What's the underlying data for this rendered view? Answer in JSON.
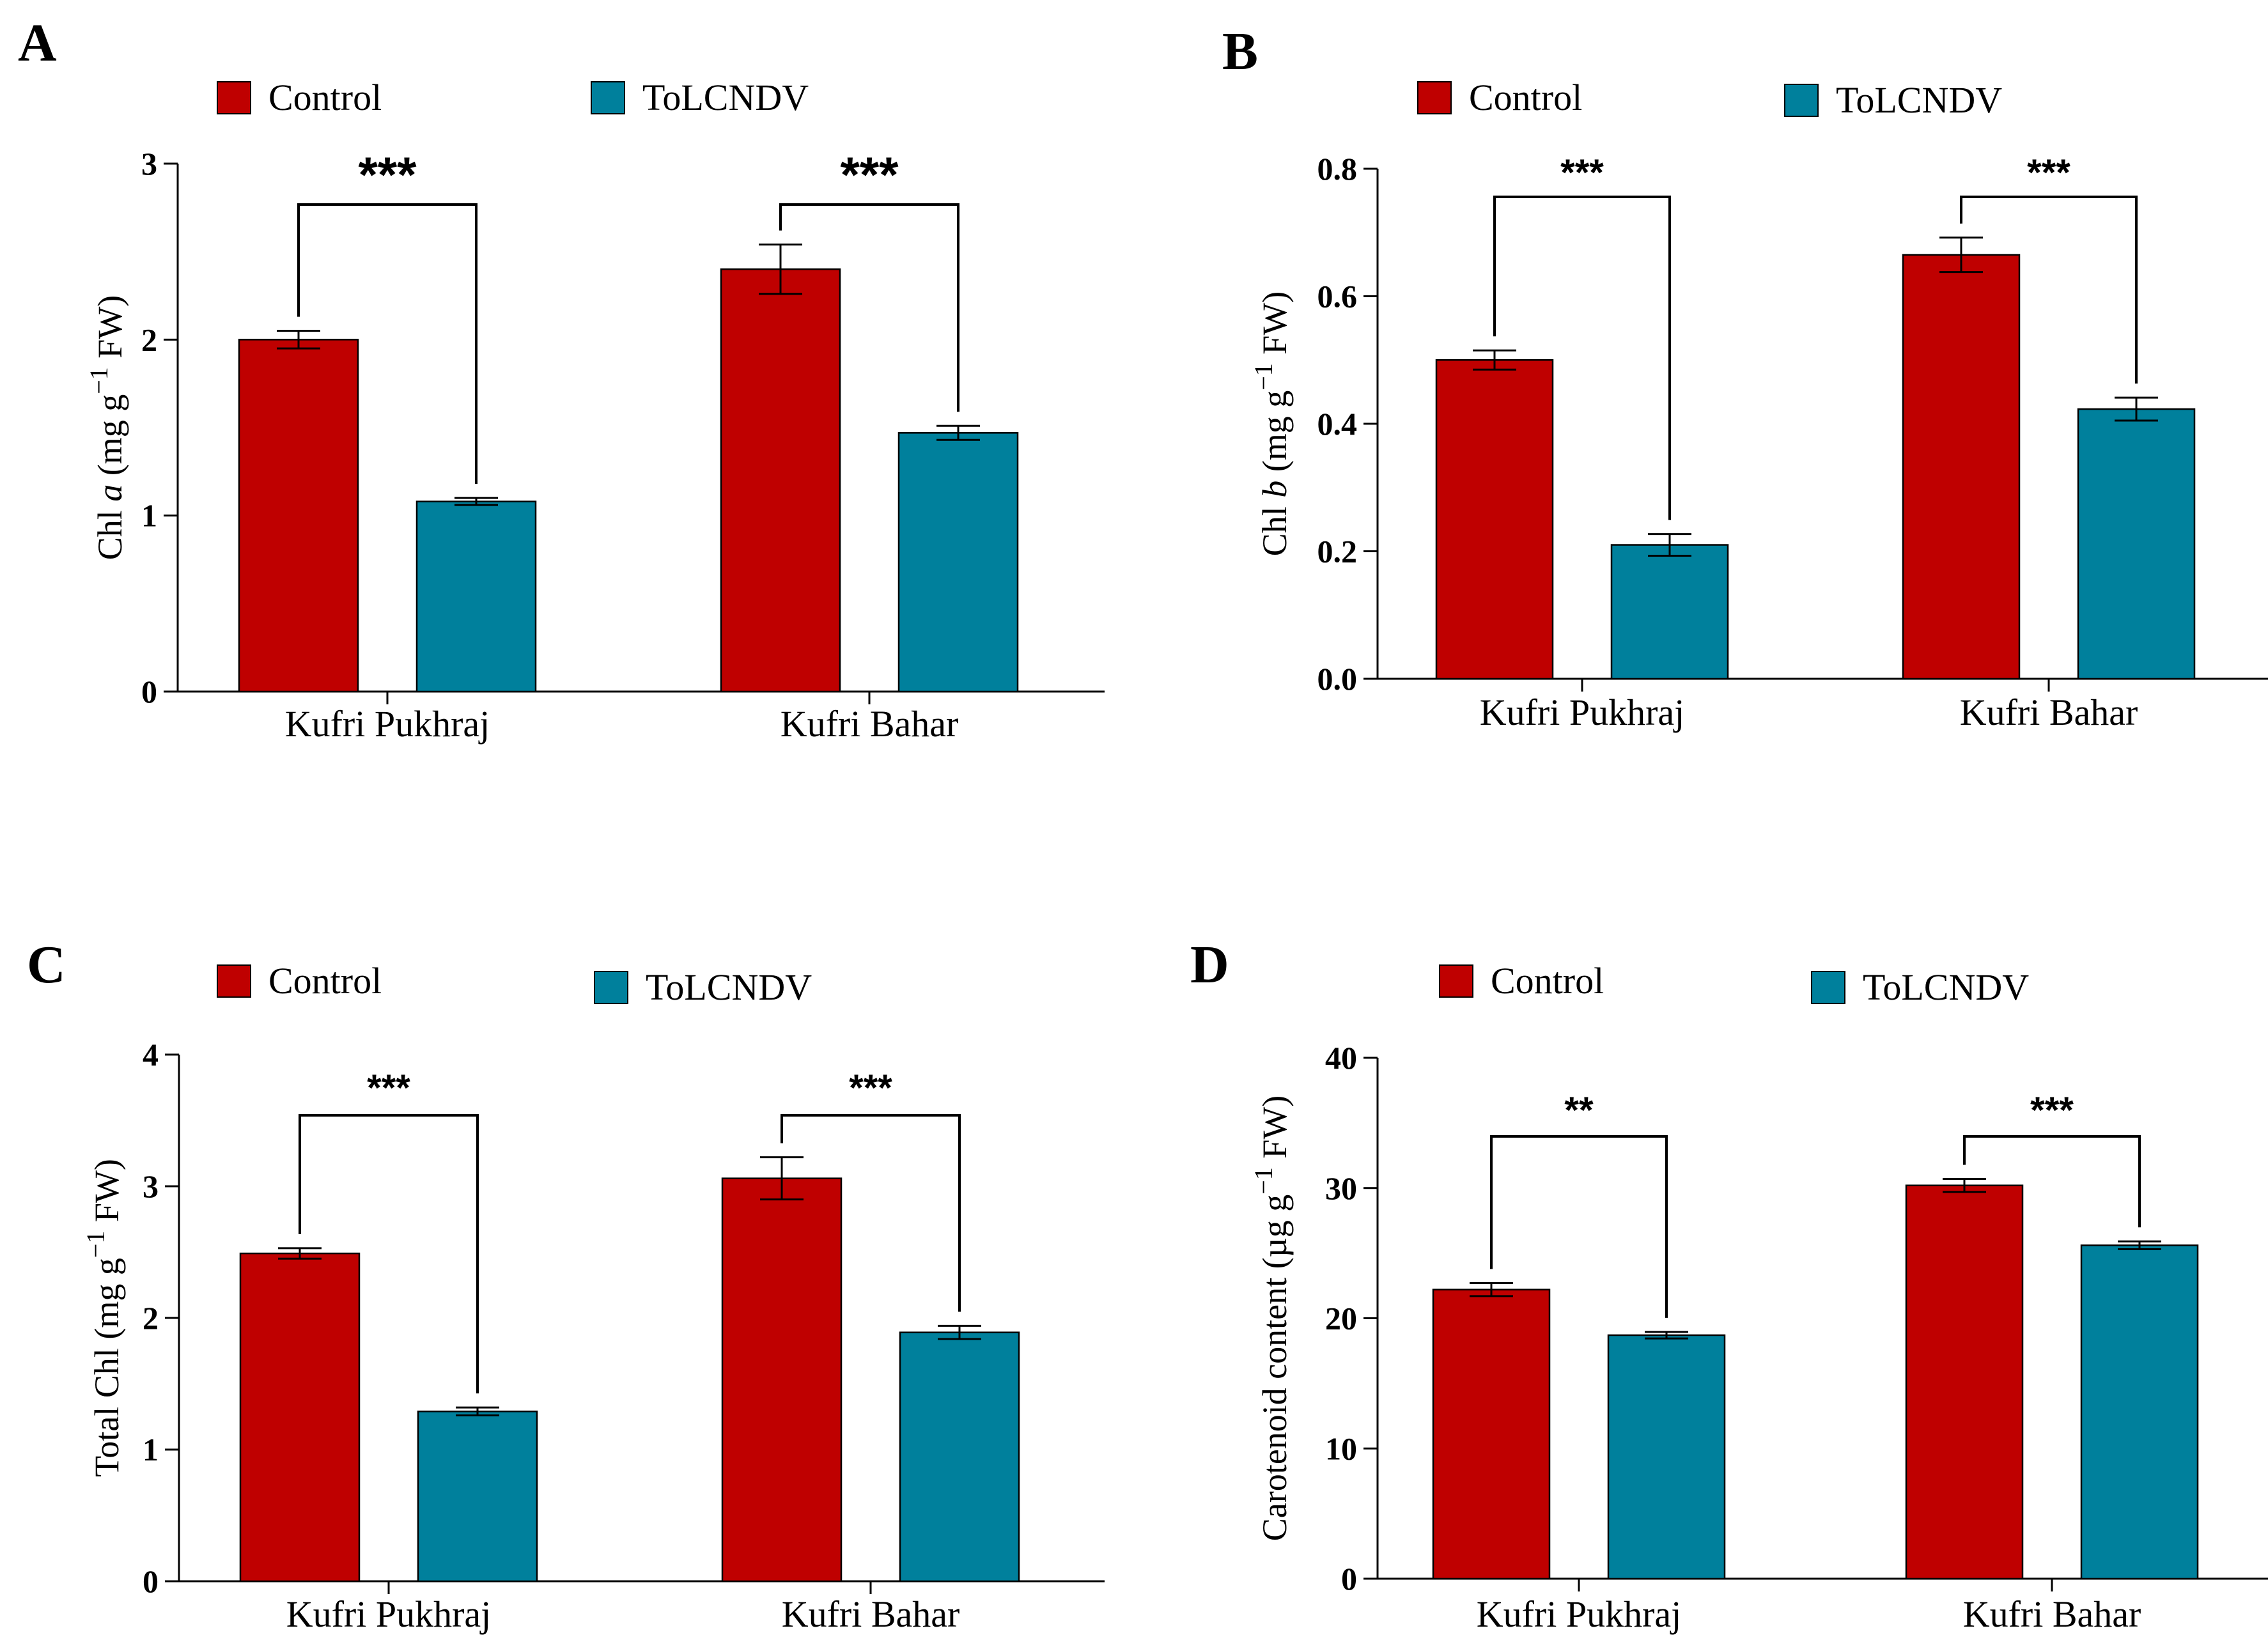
{
  "colors": {
    "control": "#bf0000",
    "tolcndv": "#00809c"
  },
  "chart_data": [
    {
      "panel": "A",
      "type": "bar",
      "categories": [
        "Kufri Pukhraj",
        "Kufri Bahar"
      ],
      "legend": [
        "Control",
        "ToLCNDV"
      ],
      "series": [
        {
          "name": "Control",
          "values": [
            2.0,
            2.4
          ],
          "errors": [
            0.05,
            0.14
          ]
        },
        {
          "name": "ToLCNDV",
          "values": [
            1.08,
            1.47
          ],
          "errors": [
            0.02,
            0.04
          ]
        }
      ],
      "ylabel_parts": [
        {
          "t": "Chl "
        },
        {
          "t": "a",
          "style": "italic"
        },
        {
          "t": " (mg g"
        },
        {
          "t": "−1",
          "sup": true
        },
        {
          "t": " FW)"
        }
      ],
      "ylim": [
        0,
        3
      ],
      "yticks": [
        0,
        1,
        2,
        3
      ],
      "ytick_labels": [
        "0",
        "1",
        "2",
        "3"
      ],
      "significance": [
        "***",
        "***"
      ],
      "legend_position": "top"
    },
    {
      "panel": "B",
      "type": "bar",
      "categories": [
        "Kufri Pukhraj",
        "Kufri Bahar"
      ],
      "legend": [
        "Control",
        "ToLCNDV"
      ],
      "series": [
        {
          "name": "Control",
          "values": [
            0.5,
            0.665
          ],
          "errors": [
            0.015,
            0.027
          ]
        },
        {
          "name": "ToLCNDV",
          "values": [
            0.21,
            0.423
          ],
          "errors": [
            0.017,
            0.018
          ]
        }
      ],
      "ylabel_parts": [
        {
          "t": "Chl "
        },
        {
          "t": "b",
          "style": "italic"
        },
        {
          "t": " (mg g"
        },
        {
          "t": "−1",
          "sup": true
        },
        {
          "t": " FW)"
        }
      ],
      "ylim": [
        0,
        0.8
      ],
      "yticks": [
        0,
        0.2,
        0.4,
        0.6,
        0.8
      ],
      "ytick_labels": [
        "0.0",
        "0.2",
        "0.4",
        "0.6",
        "0.8"
      ],
      "significance": [
        "***",
        "***"
      ],
      "legend_position": "top"
    },
    {
      "panel": "C",
      "type": "bar",
      "categories": [
        "Kufri Pukhraj",
        "Kufri Bahar"
      ],
      "legend": [
        "Control",
        "ToLCNDV"
      ],
      "series": [
        {
          "name": "Control",
          "values": [
            2.49,
            3.06
          ],
          "errors": [
            0.04,
            0.16
          ]
        },
        {
          "name": "ToLCNDV",
          "values": [
            1.29,
            1.89
          ],
          "errors": [
            0.03,
            0.05
          ]
        }
      ],
      "ylabel_parts": [
        {
          "t": "Total Chl (mg g"
        },
        {
          "t": "−1",
          "sup": true
        },
        {
          "t": " FW)"
        }
      ],
      "ylim": [
        0,
        4
      ],
      "yticks": [
        0,
        1,
        2,
        3,
        4
      ],
      "ytick_labels": [
        "0",
        "1",
        "2",
        "3",
        "4"
      ],
      "significance": [
        "***",
        "***"
      ],
      "legend_position": "top"
    },
    {
      "panel": "D",
      "type": "bar",
      "categories": [
        "Kufri Pukhraj",
        "Kufri Bahar"
      ],
      "legend": [
        "Control",
        "ToLCNDV"
      ],
      "series": [
        {
          "name": "Control",
          "values": [
            22.2,
            30.2
          ],
          "errors": [
            0.5,
            0.5
          ]
        },
        {
          "name": "ToLCNDV",
          "values": [
            18.7,
            25.6
          ],
          "errors": [
            0.25,
            0.3
          ]
        }
      ],
      "ylabel_parts": [
        {
          "t": "Carotenoid content (µg g"
        },
        {
          "t": "−1",
          "sup": true
        },
        {
          "t": " FW)"
        }
      ],
      "ylim": [
        0,
        40
      ],
      "yticks": [
        0,
        10,
        20,
        30,
        40
      ],
      "ytick_labels": [
        "0",
        "10",
        "20",
        "30",
        "40"
      ],
      "significance": [
        "**",
        "***"
      ],
      "legend_position": "top"
    }
  ]
}
